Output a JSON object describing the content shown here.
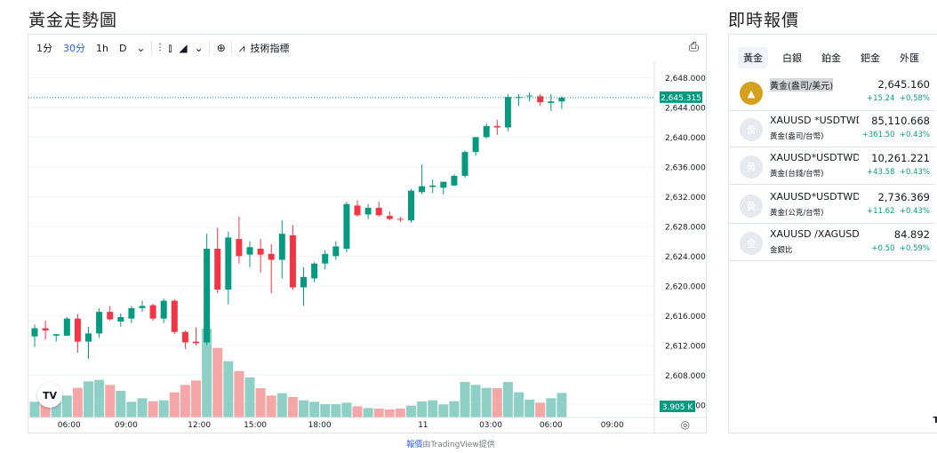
{
  "page_title": "黃金走勢圖",
  "side_title": "即時報價",
  "toolbar": {
    "intervals": [
      "1分",
      "30分",
      "1h",
      "D"
    ],
    "active_interval": "30分",
    "indicators_label": "技術指標"
  },
  "chart": {
    "last_price_label": "2,645.315",
    "volume_label": "3.905 K",
    "logo_text": "TV",
    "credit_prefix": "報價",
    "credit_brand": "由TradingView提供",
    "colors": {
      "up": "#089981",
      "down": "#f23645",
      "vol_up": "#8fd0c6",
      "vol_down": "#f5a6a6",
      "last": "#089981"
    }
  },
  "chart_data": {
    "type": "candlestick",
    "y_ticks": [
      "2,648.000",
      "2,644.000",
      "2,640.000",
      "2,636.000",
      "2,632.000",
      "2,628.000",
      "2,624.000",
      "2,620.000",
      "2,616.000",
      "2,612.000",
      "2,608.000",
      "2,604.000"
    ],
    "y_tick_values": [
      2648,
      2644,
      2640,
      2636,
      2632,
      2628,
      2624,
      2620,
      2616,
      2612,
      2608,
      2604
    ],
    "ylim": [
      2602.3,
      2650.2
    ],
    "x_ticks": [
      "06:00",
      "09:00",
      "12:00",
      "15:00",
      "18:00",
      "11",
      "03:00",
      "06:00",
      "09:00"
    ],
    "last_price": 2645.315,
    "candles": [
      {
        "o": 2613.2,
        "h": 2614.8,
        "l": 2611.8,
        "c": 2614.3,
        "v": 0.53
      },
      {
        "o": 2614.3,
        "h": 2615.3,
        "l": 2612.8,
        "c": 2614.0,
        "v": 0.57
      },
      {
        "o": 2613.3,
        "h": 2613.5,
        "l": 2612.5,
        "c": 2613.5,
        "v": 0.53
      },
      {
        "o": 2613.3,
        "h": 2615.8,
        "l": 2613.3,
        "c": 2615.6,
        "v": 0.74
      },
      {
        "o": 2615.6,
        "h": 2616.2,
        "l": 2611.0,
        "c": 2612.5,
        "v": 1.0
      },
      {
        "o": 2612.5,
        "h": 2614.5,
        "l": 2610.2,
        "c": 2613.6,
        "v": 1.22
      },
      {
        "o": 2613.6,
        "h": 2617.0,
        "l": 2613.0,
        "c": 2616.5,
        "v": 1.27
      },
      {
        "o": 2616.5,
        "h": 2617.3,
        "l": 2615.3,
        "c": 2615.5,
        "v": 1.1
      },
      {
        "o": 2615.2,
        "h": 2616.3,
        "l": 2614.5,
        "c": 2615.8,
        "v": 0.9
      },
      {
        "o": 2615.6,
        "h": 2617.3,
        "l": 2615.0,
        "c": 2617.0,
        "v": 0.53
      },
      {
        "o": 2617.0,
        "h": 2618.0,
        "l": 2616.5,
        "c": 2617.3,
        "v": 0.65
      },
      {
        "o": 2617.4,
        "h": 2617.6,
        "l": 2615.3,
        "c": 2615.6,
        "v": 0.55
      },
      {
        "o": 2615.6,
        "h": 2618.3,
        "l": 2615.0,
        "c": 2618.0,
        "v": 0.58
      },
      {
        "o": 2618.0,
        "h": 2618.2,
        "l": 2613.5,
        "c": 2613.8,
        "v": 0.85
      },
      {
        "o": 2613.8,
        "h": 2614.0,
        "l": 2611.5,
        "c": 2612.4,
        "v": 1.1
      },
      {
        "o": 2612.5,
        "h": 2614.4,
        "l": 2612.0,
        "c": 2612.3,
        "v": 1.25
      },
      {
        "o": 2612.4,
        "h": 2627.0,
        "l": 2612.0,
        "c": 2625.0,
        "v": 3.0
      },
      {
        "o": 2625.0,
        "h": 2627.8,
        "l": 2619.0,
        "c": 2619.5,
        "v": 2.35
      },
      {
        "o": 2619.5,
        "h": 2627.3,
        "l": 2617.5,
        "c": 2626.5,
        "v": 1.9
      },
      {
        "o": 2626.3,
        "h": 2629.3,
        "l": 2623.0,
        "c": 2624.0,
        "v": 1.57
      },
      {
        "o": 2624.2,
        "h": 2626.0,
        "l": 2622.5,
        "c": 2625.2,
        "v": 1.35
      },
      {
        "o": 2625.0,
        "h": 2626.3,
        "l": 2621.8,
        "c": 2624.2,
        "v": 0.99
      },
      {
        "o": 2624.3,
        "h": 2625.6,
        "l": 2619.0,
        "c": 2623.5,
        "v": 0.74
      },
      {
        "o": 2623.5,
        "h": 2628.8,
        "l": 2621.0,
        "c": 2627.0,
        "v": 0.82
      },
      {
        "o": 2626.8,
        "h": 2628.2,
        "l": 2619.5,
        "c": 2619.8,
        "v": 0.69
      },
      {
        "o": 2619.8,
        "h": 2622.5,
        "l": 2617.3,
        "c": 2621.2,
        "v": 0.58
      },
      {
        "o": 2621.0,
        "h": 2623.2,
        "l": 2620.5,
        "c": 2623.0,
        "v": 0.53
      },
      {
        "o": 2623.0,
        "h": 2624.8,
        "l": 2622.2,
        "c": 2624.3,
        "v": 0.45
      },
      {
        "o": 2624.0,
        "h": 2626.0,
        "l": 2623.5,
        "c": 2625.3,
        "v": 0.45
      },
      {
        "o": 2625.0,
        "h": 2631.3,
        "l": 2624.5,
        "c": 2631.0,
        "v": 0.5
      },
      {
        "o": 2630.8,
        "h": 2631.5,
        "l": 2629.3,
        "c": 2629.5,
        "v": 0.38
      },
      {
        "o": 2629.6,
        "h": 2631.0,
        "l": 2629.0,
        "c": 2630.5,
        "v": 0.32
      },
      {
        "o": 2630.5,
        "h": 2631.3,
        "l": 2629.3,
        "c": 2629.5,
        "v": 0.3
      },
      {
        "o": 2629.4,
        "h": 2630.0,
        "l": 2628.8,
        "c": 2629.0,
        "v": 0.27
      },
      {
        "o": 2629.0,
        "h": 2629.3,
        "l": 2628.6,
        "c": 2628.9,
        "v": 0.3
      },
      {
        "o": 2628.8,
        "h": 2633.0,
        "l": 2628.5,
        "c": 2632.8,
        "v": 0.4
      },
      {
        "o": 2632.6,
        "h": 2636.3,
        "l": 2632.3,
        "c": 2633.4,
        "v": 0.54
      },
      {
        "o": 2633.3,
        "h": 2634.3,
        "l": 2632.5,
        "c": 2633.5,
        "v": 0.58
      },
      {
        "o": 2633.2,
        "h": 2634.0,
        "l": 2632.3,
        "c": 2634.0,
        "v": 0.44
      },
      {
        "o": 2633.5,
        "h": 2635.0,
        "l": 2633.5,
        "c": 2634.8,
        "v": 0.55
      },
      {
        "o": 2634.8,
        "h": 2638.2,
        "l": 2634.5,
        "c": 2638.0,
        "v": 1.2
      },
      {
        "o": 2638.0,
        "h": 2640.0,
        "l": 2637.5,
        "c": 2640.0,
        "v": 1.1
      },
      {
        "o": 2640.0,
        "h": 2641.8,
        "l": 2639.8,
        "c": 2641.5,
        "v": 1.0
      },
      {
        "o": 2641.5,
        "h": 2642.3,
        "l": 2640.3,
        "c": 2641.3,
        "v": 0.99
      },
      {
        "o": 2641.3,
        "h": 2645.8,
        "l": 2640.8,
        "c": 2645.4,
        "v": 1.2
      },
      {
        "o": 2645.3,
        "h": 2645.8,
        "l": 2644.2,
        "c": 2645.4,
        "v": 0.85
      },
      {
        "o": 2645.5,
        "h": 2646.0,
        "l": 2644.8,
        "c": 2645.6,
        "v": 0.6
      },
      {
        "o": 2645.5,
        "h": 2645.8,
        "l": 2644.2,
        "c": 2644.7,
        "v": 0.5
      },
      {
        "o": 2644.6,
        "h": 2645.8,
        "l": 2643.5,
        "c": 2644.8,
        "v": 0.65
      },
      {
        "o": 2644.8,
        "h": 2645.5,
        "l": 2643.8,
        "c": 2645.3,
        "v": 0.83
      }
    ]
  },
  "quotes": {
    "tabs": [
      "黃金",
      "白銀",
      "鉑金",
      "鈀金",
      "外匯"
    ],
    "active_tab": "黃金",
    "rows": [
      {
        "icon": "gold-bar-icon",
        "icon_text": "▲",
        "symbol": "",
        "name": "黃金(盎司/美元)",
        "price": "2,645.160",
        "change": "+15.24",
        "pct": "+0.58%"
      },
      {
        "icon": "generic-icon",
        "icon_text": "黃",
        "symbol": "XAUUSD *USDTWD",
        "name": "黃金(盎司/台幣)",
        "price": "85,110.668",
        "change": "+361.50",
        "pct": "+0.43%"
      },
      {
        "icon": "generic-icon",
        "icon_text": "黃",
        "symbol": "XAUUSD*USDTWD/",
        "name": "黃金(台錢/台幣)",
        "price": "10,261.221",
        "change": "+43.58",
        "pct": "+0.43%"
      },
      {
        "icon": "generic-icon",
        "icon_text": "黃",
        "symbol": "XAUUSD*USDTWD/",
        "name": "黃金(公克/台幣)",
        "price": "2,736.369",
        "change": "+11.62",
        "pct": "+0.43%"
      },
      {
        "icon": "generic-icon",
        "icon_text": "金",
        "symbol": "XAUUSD /XAGUSD",
        "name": "金銀比",
        "price": "84.892",
        "change": "+0.50",
        "pct": "+0.59%"
      }
    ],
    "logo_text": "TV"
  }
}
